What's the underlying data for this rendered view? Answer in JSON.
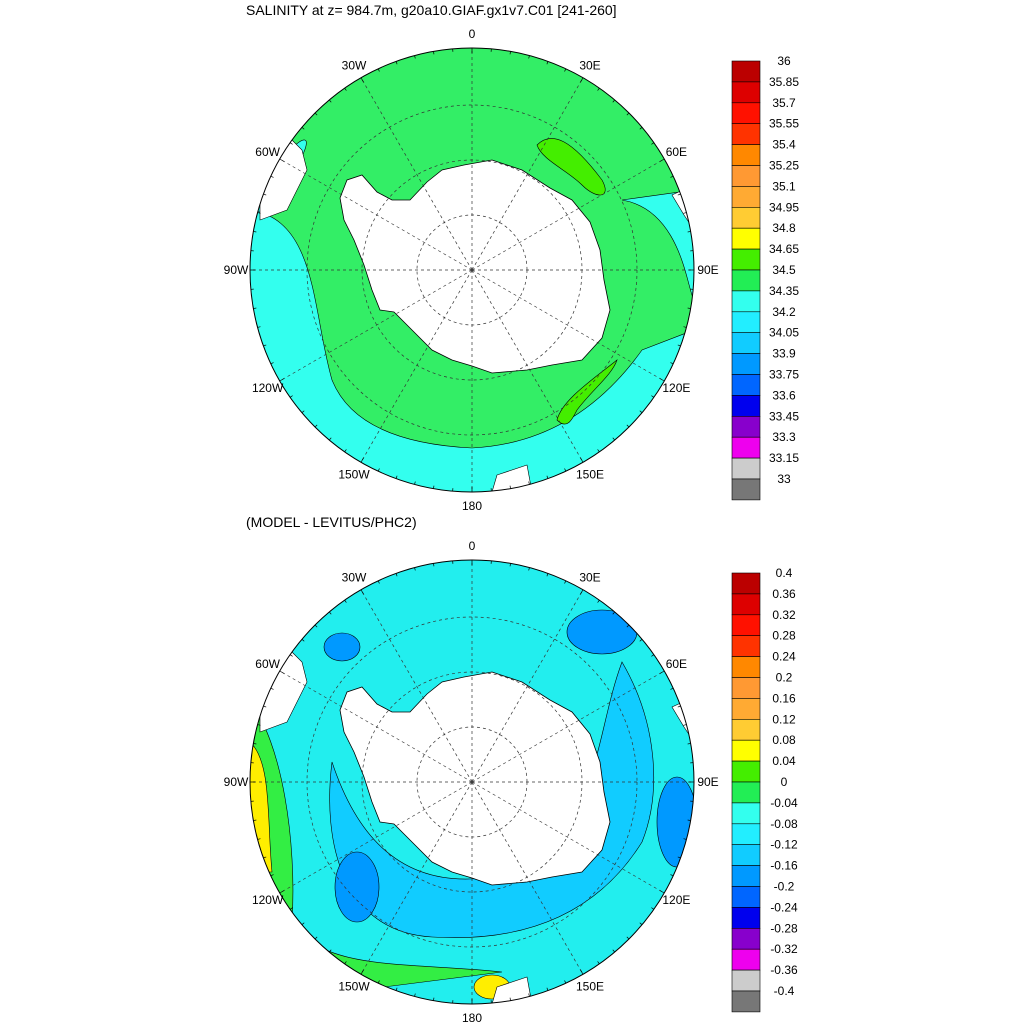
{
  "top": {
    "title": "SALINITY at z= 984.7m, g20a10.GIAF.gx1v7.C01 [241-260]",
    "lon_labels": [
      "0",
      "30E",
      "60E",
      "90E",
      "120E",
      "150E",
      "180",
      "150W",
      "120W",
      "90W",
      "60W",
      "30W"
    ],
    "colorbar_labels": [
      "36",
      "35.85",
      "35.7",
      "35.55",
      "35.4",
      "35.25",
      "35.1",
      "34.95",
      "34.8",
      "34.65",
      "34.5",
      "34.35",
      "34.2",
      "34.05",
      "33.9",
      "33.75",
      "33.6",
      "33.45",
      "33.3",
      "33.15",
      "33"
    ],
    "field_colors": {
      "ocean": "#33ee66",
      "low": "#33ffee",
      "high": "#44ee00"
    }
  },
  "bottom": {
    "title": "(MODEL - LEVITUS/PHC2)",
    "lon_labels": [
      "0",
      "30E",
      "60E",
      "90E",
      "120E",
      "150E",
      "180",
      "150W",
      "120W",
      "90W",
      "60W",
      "30W"
    ],
    "colorbar_labels": [
      "0.4",
      "0.36",
      "0.32",
      "0.28",
      "0.24",
      "0.2",
      "0.16",
      "0.12",
      "0.08",
      "0.04",
      "0",
      "-0.04",
      "-0.08",
      "-0.12",
      "-0.16",
      "-0.2",
      "-0.24",
      "-0.28",
      "-0.32",
      "-0.36",
      "-0.4"
    ],
    "field_colors": {
      "ocean": "#22eeee",
      "low": "#11ccff",
      "lower": "#0099ff",
      "high": "#33ee44",
      "higher": "#ffee00"
    }
  },
  "colorbar_colors": [
    "#bb0000",
    "#dd0000",
    "#ff1100",
    "#ff3300",
    "#ff8800",
    "#ff9933",
    "#ffaa33",
    "#ffcc33",
    "#ffff00",
    "#44ee00",
    "#22ee55",
    "#33ffee",
    "#22eeff",
    "#11ccff",
    "#0099ff",
    "#0066ff",
    "#0000ee",
    "#8800cc",
    "#ee00ee",
    "#cccccc",
    "#777777"
  ]
}
